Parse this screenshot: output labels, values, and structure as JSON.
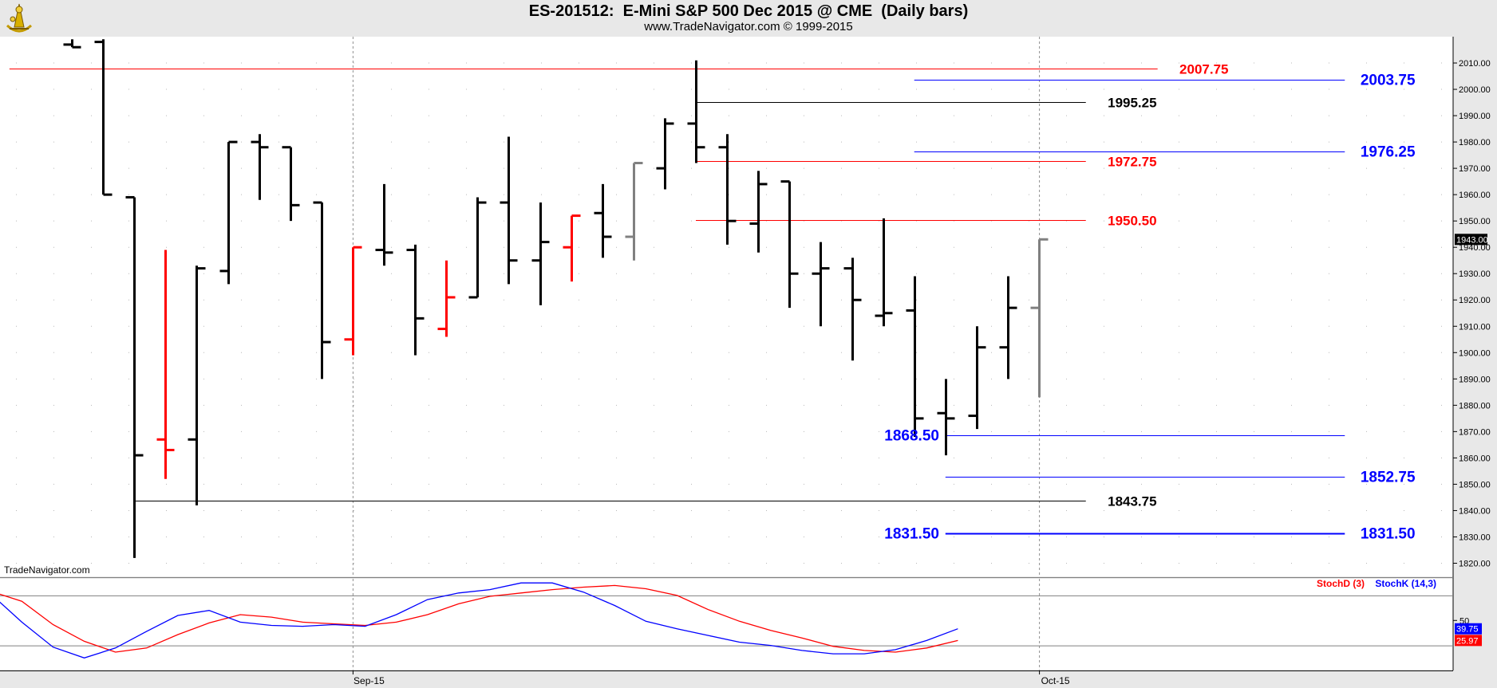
{
  "header": {
    "title": "ES-201512:  E-Mini S&P 500 Dec 2015 @ CME  (Daily bars)",
    "subtitle": "www.TradeNavigator.com © 1999-2015",
    "watermark": "TradeNavigator.com",
    "logo_icon": "sextant-logo-icon"
  },
  "colors": {
    "up_bar": "#000000",
    "down_bar": "#ff0000",
    "current_bar": "#808080",
    "red_level": "#ff0000",
    "blue_level": "#0000ff",
    "black_level": "#000000",
    "stoch_d": "#ff0000",
    "stoch_k": "#0000ff",
    "background": "#ffffff"
  },
  "chart_data": [
    {
      "type": "ohlc",
      "title": "ES-201512:  E-Mini S&P 500 Dec 2015 @ CME  (Daily bars)",
      "x_tick_labels": [
        {
          "label": "Sep-15",
          "bar_index": 9
        },
        {
          "label": "Oct-15",
          "bar_index": 31
        }
      ],
      "y_range": [
        1815,
        2020
      ],
      "y_ticks": [
        1820,
        1830,
        1840,
        1850,
        1860,
        1870,
        1880,
        1890,
        1900,
        1910,
        1920,
        1930,
        1940,
        1950,
        1960,
        1970,
        1980,
        1990,
        2000,
        2010
      ],
      "y_tick_labels": [
        "1820.00",
        "1830.00",
        "1840.00",
        "1850.00",
        "1860.00",
        "1870.00",
        "1880.00",
        "1890.00",
        "1900.00",
        "1910.00",
        "1920.00",
        "1930.00",
        "1940.00",
        "1950.00",
        "1960.00",
        "1970.00",
        "1980.00",
        "1990.00",
        "2000.00",
        "2010.00"
      ],
      "last_price_label": "1943.00",
      "last_price": 1943,
      "grid": "dotted",
      "bars": [
        {
          "o": 2017.0,
          "h": 2019.0,
          "l": 2016.0,
          "c": 2016.0,
          "color": "up"
        },
        {
          "o": 2018.0,
          "h": 2019.0,
          "l": 1960.0,
          "c": 1960.0,
          "color": "up"
        },
        {
          "o": 1959.0,
          "h": 1959.0,
          "l": 1822.0,
          "c": 1861.0,
          "color": "up"
        },
        {
          "o": 1867.0,
          "h": 1939.0,
          "l": 1852.0,
          "c": 1863.0,
          "color": "down"
        },
        {
          "o": 1867.0,
          "h": 1933.0,
          "l": 1842.0,
          "c": 1932.0,
          "color": "up"
        },
        {
          "o": 1931.0,
          "h": 1980.0,
          "l": 1926.0,
          "c": 1980.0,
          "color": "up"
        },
        {
          "o": 1980.0,
          "h": 1983.0,
          "l": 1958.0,
          "c": 1978.0,
          "color": "up"
        },
        {
          "o": 1978.0,
          "h": 1978.0,
          "l": 1950.0,
          "c": 1956.0,
          "color": "up"
        },
        {
          "o": 1957.0,
          "h": 1957.0,
          "l": 1890.0,
          "c": 1904.0,
          "color": "up"
        },
        {
          "o": 1905.0,
          "h": 1940.0,
          "l": 1899.0,
          "c": 1940.0,
          "color": "down"
        },
        {
          "o": 1939.0,
          "h": 1964.0,
          "l": 1933.0,
          "c": 1938.0,
          "color": "up"
        },
        {
          "o": 1939.0,
          "h": 1941.0,
          "l": 1899.0,
          "c": 1913.0,
          "color": "up"
        },
        {
          "o": 1909.0,
          "h": 1935.0,
          "l": 1906.0,
          "c": 1921.0,
          "color": "down"
        },
        {
          "o": 1921.0,
          "h": 1959.0,
          "l": 1921.0,
          "c": 1957.0,
          "color": "up"
        },
        {
          "o": 1957.0,
          "h": 1982.0,
          "l": 1926.0,
          "c": 1935.0,
          "color": "up"
        },
        {
          "o": 1935.0,
          "h": 1957.0,
          "l": 1918.0,
          "c": 1942.0,
          "color": "up"
        },
        {
          "o": 1940.0,
          "h": 1952.0,
          "l": 1927.0,
          "c": 1952.0,
          "color": "down"
        },
        {
          "o": 1953.0,
          "h": 1964.0,
          "l": 1936.0,
          "c": 1944.0,
          "color": "up"
        },
        {
          "o": 1944.0,
          "h": 1972.0,
          "l": 1935.0,
          "c": 1972.0,
          "color": "current"
        },
        {
          "o": 1970.0,
          "h": 1989.0,
          "l": 1962.0,
          "c": 1987.0,
          "color": "up"
        },
        {
          "o": 1987.0,
          "h": 2011.0,
          "l": 1972.0,
          "c": 1978.0,
          "color": "up"
        },
        {
          "o": 1978.0,
          "h": 1983.0,
          "l": 1941.0,
          "c": 1950.0,
          "color": "up"
        },
        {
          "o": 1949.0,
          "h": 1969.0,
          "l": 1938.0,
          "c": 1964.0,
          "color": "up"
        },
        {
          "o": 1965.0,
          "h": 1965.0,
          "l": 1917.0,
          "c": 1930.0,
          "color": "up"
        },
        {
          "o": 1930.0,
          "h": 1942.0,
          "l": 1910.0,
          "c": 1932.0,
          "color": "up"
        },
        {
          "o": 1932.0,
          "h": 1936.0,
          "l": 1897.0,
          "c": 1920.0,
          "color": "up"
        },
        {
          "o": 1914.0,
          "h": 1951.0,
          "l": 1910.0,
          "c": 1915.0,
          "color": "up"
        },
        {
          "o": 1916.0,
          "h": 1929.0,
          "l": 1868.0,
          "c": 1875.0,
          "color": "up"
        },
        {
          "o": 1877.0,
          "h": 1890.0,
          "l": 1861.0,
          "c": 1875.0,
          "color": "up"
        },
        {
          "o": 1876.0,
          "h": 1910.0,
          "l": 1871.0,
          "c": 1902.0,
          "color": "up"
        },
        {
          "o": 1902.0,
          "h": 1929.0,
          "l": 1890.0,
          "c": 1917.0,
          "color": "up"
        },
        {
          "o": 1917.0,
          "h": 1943.0,
          "l": 1883.0,
          "c": 1943.0,
          "color": "current"
        }
      ],
      "levels": [
        {
          "value": 2007.75,
          "label": "2007.75",
          "color": "red",
          "from_bar": -2,
          "to_bar": 34.8,
          "label_side": "right",
          "label_bar": 35.5
        },
        {
          "value": 2003.75,
          "label": "2003.75",
          "color": "blue",
          "from_bar": 27,
          "to_bar": 40.8,
          "label_side": "right",
          "label_bar": 41.3
        },
        {
          "value": 1995.25,
          "label": "1995.25",
          "color": "black",
          "from_bar": 20,
          "to_bar": 32.5,
          "label_side": "right",
          "label_bar": 33.2
        },
        {
          "value": 1976.25,
          "label": "1976.25",
          "color": "blue",
          "from_bar": 27,
          "to_bar": 40.8,
          "label_side": "right",
          "label_bar": 41.3
        },
        {
          "value": 1972.75,
          "label": "1972.75",
          "color": "red",
          "from_bar": 20,
          "to_bar": 32.5,
          "label_side": "right",
          "label_bar": 33.2
        },
        {
          "value": 1950.5,
          "label": "1950.50",
          "color": "red",
          "from_bar": 20,
          "to_bar": 32.5,
          "label_side": "right",
          "label_bar": 33.2
        },
        {
          "value": 1868.5,
          "label": "1868.50",
          "color": "blue",
          "from_bar": 28,
          "to_bar": 40.8,
          "label_side": "left",
          "label_bar": 27.8
        },
        {
          "value": 1852.75,
          "label": "1852.75",
          "color": "blue",
          "from_bar": 28,
          "to_bar": 40.8,
          "label_side": "right",
          "label_bar": 41.3
        },
        {
          "value": 1843.75,
          "label": "1843.75",
          "color": "black",
          "from_bar": 2,
          "to_bar": 32.5,
          "label_side": "right",
          "label_bar": 33.2
        },
        {
          "value": 1831.5,
          "label": "1831.50",
          "color": "blue",
          "from_bar": 28,
          "to_bar": 40.8,
          "label_side": "both",
          "label_bar": 27.8,
          "label_bar_right": 41.3,
          "thick": true
        }
      ]
    },
    {
      "type": "line",
      "title": "",
      "legend": [
        "StochD (3)",
        "StochK (14,3)"
      ],
      "legend_placement": "top-right",
      "y_range": [
        -10,
        100
      ],
      "y_ticks": [
        50
      ],
      "y_tick_labels": [
        "50"
      ],
      "reference_lines": [
        80,
        20
      ],
      "last_labels": {
        "k": "39.75",
        "d": "25.97"
      },
      "series": [
        {
          "name": "StochD (3)",
          "color": "red",
          "values": [
            85,
            73,
            45,
            25,
            12,
            17,
            33,
            47,
            57,
            54,
            48,
            46,
            44,
            48,
            57,
            70,
            79,
            83,
            87,
            90,
            92,
            88,
            80,
            63,
            49,
            38,
            29,
            19,
            14,
            12,
            17,
            26
          ]
        },
        {
          "name": "StochK (14,3)",
          "color": "blue",
          "values": [
            82,
            48,
            18,
            5,
            17,
            37,
            56,
            62,
            48,
            44,
            43,
            45,
            43,
            57,
            75,
            83,
            87,
            95,
            95,
            84,
            68,
            49,
            40,
            32,
            24,
            20,
            14,
            10,
            10,
            15,
            26,
            40
          ]
        }
      ]
    }
  ]
}
